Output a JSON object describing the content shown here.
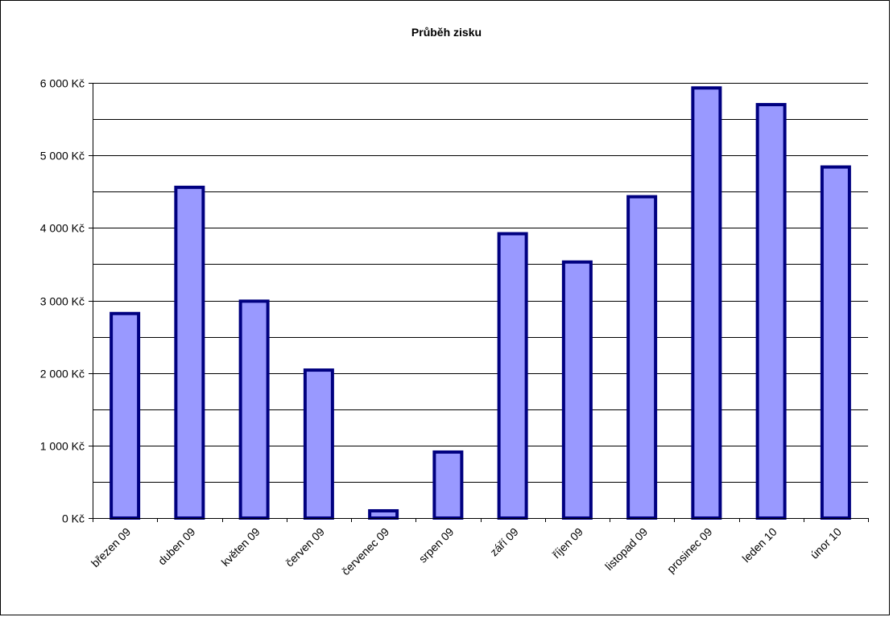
{
  "chart_data": {
    "type": "bar",
    "title": "Průběh zisku",
    "xlabel": "",
    "ylabel": "",
    "categories": [
      "březen 09",
      "duben 09",
      "květen 09",
      "červen 09",
      "červenec 09",
      "srpen 09",
      "září 09",
      "říjen 09",
      "listopad 09",
      "prosinec 09",
      "leden 10",
      "únor 10"
    ],
    "values": [
      2820,
      4560,
      2990,
      2040,
      100,
      910,
      3920,
      3530,
      4430,
      5930,
      5700,
      4840
    ],
    "ylim": [
      0,
      6000
    ],
    "yticks": [
      0,
      1000,
      2000,
      3000,
      4000,
      5000,
      6000
    ],
    "ytick_labels": [
      "0 Kč",
      "1 000 Kč",
      "2 000 Kč",
      "3 000 Kč",
      "4 000 Kč",
      "5 000 Kč",
      "6 000 Kč"
    ],
    "minor_gridlines_step": 500,
    "grid": true,
    "legend": "none",
    "colors": {
      "bar_fill": "#9999ff",
      "bar_stroke": "#000080",
      "grid": "#000000",
      "axis": "#000000"
    }
  }
}
